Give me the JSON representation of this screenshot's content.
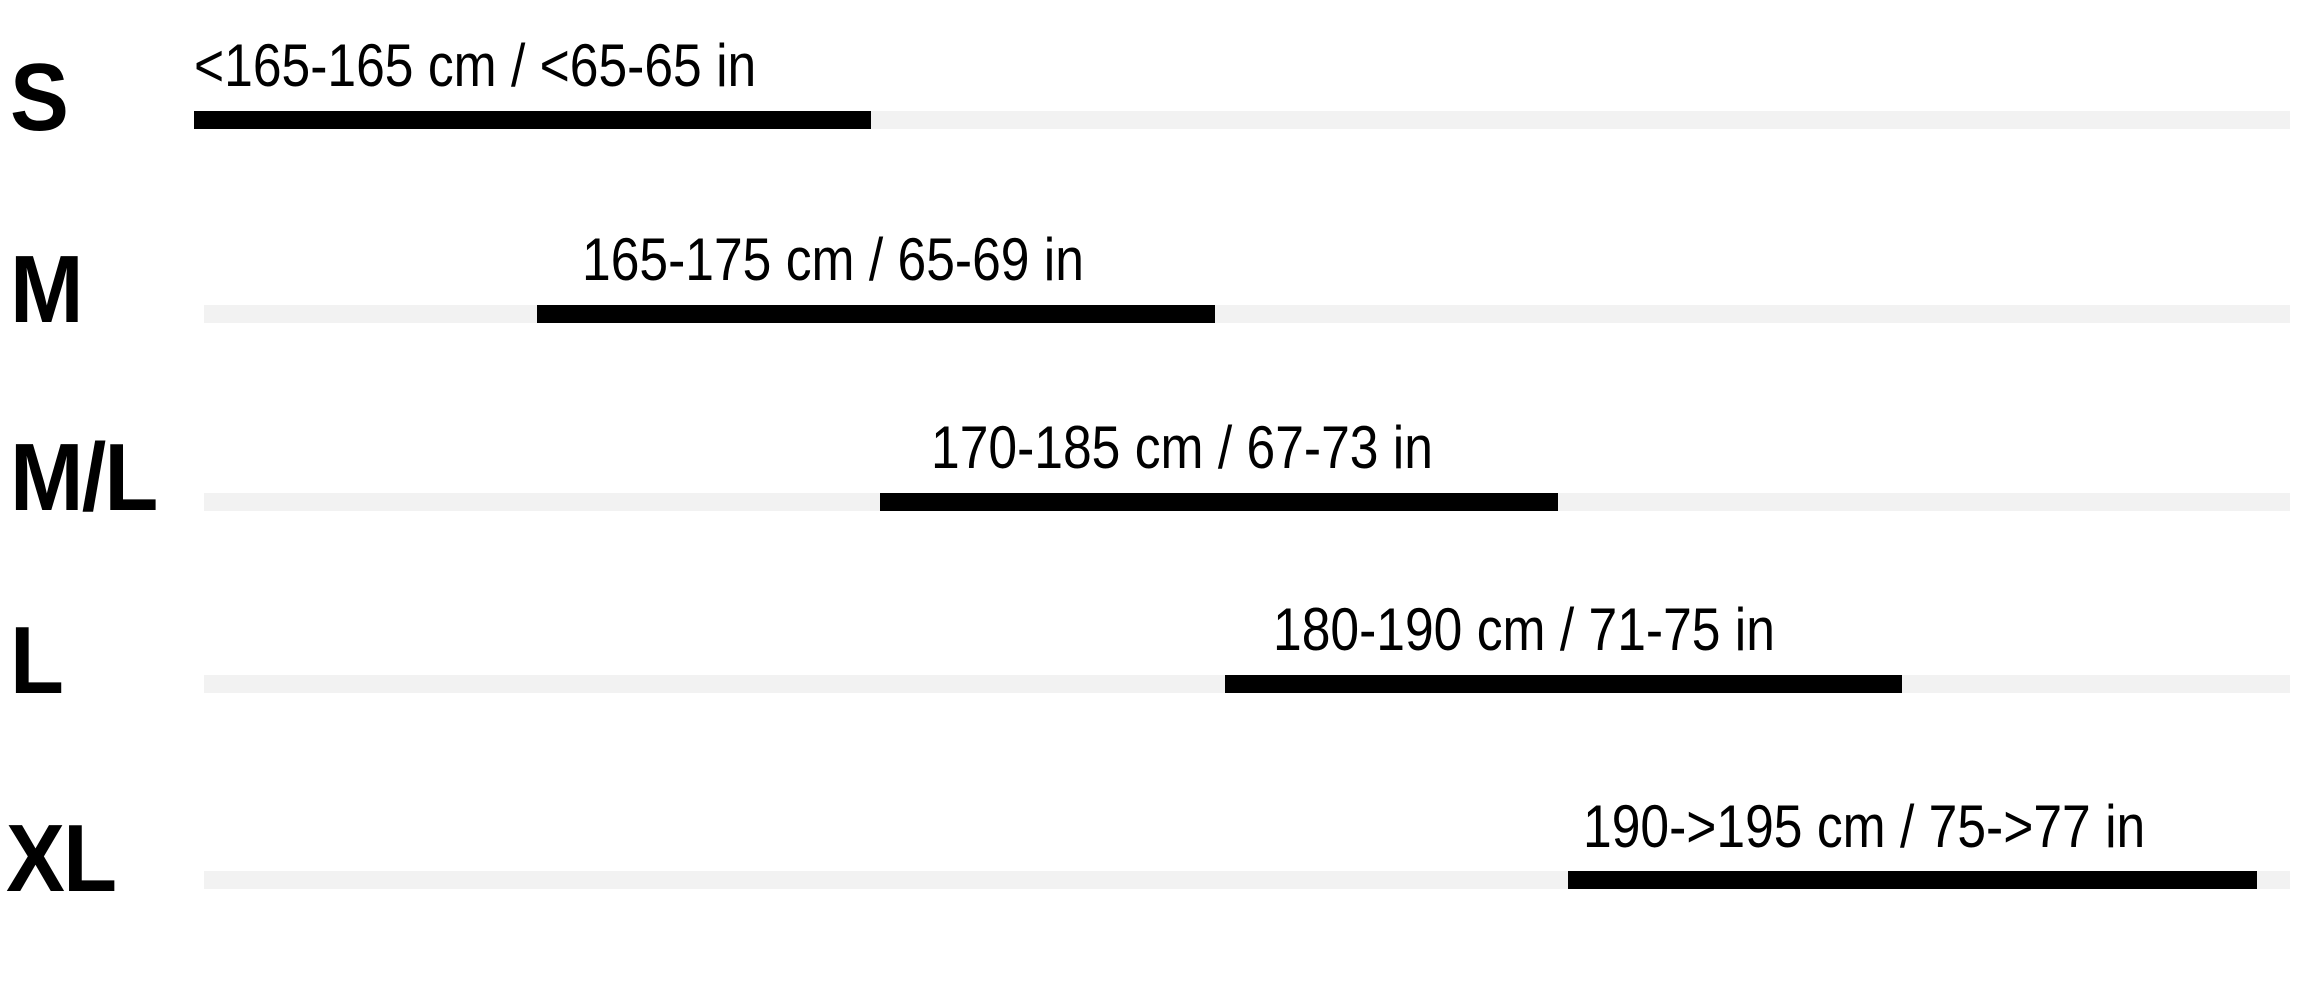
{
  "colors": {
    "bar": "#000000",
    "track": "#f2f2f2",
    "text": "#000000"
  },
  "rows": [
    {
      "size": "S",
      "range": "<165-165 cm / <65-65 in"
    },
    {
      "size": "M",
      "range": "165-175 cm / 65-69 in"
    },
    {
      "size": "M/L",
      "range": "170-185 cm / 67-73 in"
    },
    {
      "size": "L",
      "range": "180-190 cm / 71-75 in"
    },
    {
      "size": "XL",
      "range": "190->195 cm / 75->77 in"
    }
  ]
}
